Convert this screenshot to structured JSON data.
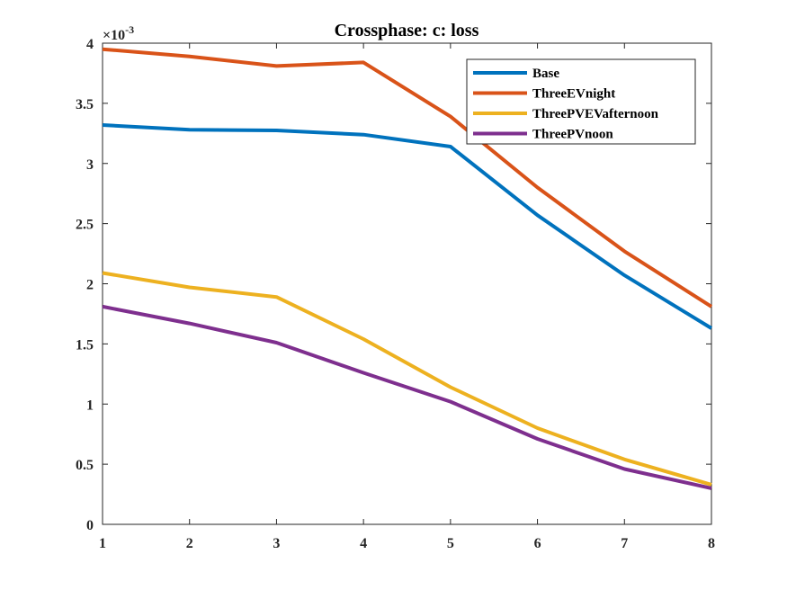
{
  "chart_data": {
    "type": "line",
    "title": "Crossphase: c: loss",
    "xlabel": "",
    "ylabel": "",
    "x": [
      1,
      2,
      3,
      4,
      5,
      6,
      7,
      8
    ],
    "xlim": [
      1,
      8
    ],
    "ylim": [
      0,
      0.004
    ],
    "x_ticks": [
      "1",
      "2",
      "3",
      "4",
      "5",
      "6",
      "7",
      "8"
    ],
    "y_ticks": [
      "0",
      "0.5",
      "1",
      "1.5",
      "2",
      "2.5",
      "3",
      "3.5",
      "4"
    ],
    "y_exponent_label": "×10",
    "y_exponent_power": "-3",
    "grid": false,
    "legend_position": "top-right",
    "series": [
      {
        "name": "Base",
        "color": "#0072BD",
        "values": [
          0.00332,
          0.00328,
          0.003275,
          0.00324,
          0.00314,
          0.00257,
          0.00207,
          0.00163
        ]
      },
      {
        "name": "ThreeEVnight",
        "color": "#D95319",
        "values": [
          0.00395,
          0.00389,
          0.00381,
          0.00384,
          0.00339,
          0.0028,
          0.00227,
          0.00181
        ]
      },
      {
        "name": "ThreePVEVafternoon",
        "color": "#EDB120",
        "values": [
          0.00209,
          0.00197,
          0.00189,
          0.00154,
          0.00114,
          0.0008,
          0.00054,
          0.00033
        ]
      },
      {
        "name": "ThreePVnoon",
        "color": "#7E2F8E",
        "values": [
          0.00181,
          0.00167,
          0.00151,
          0.00126,
          0.00102,
          0.00071,
          0.00046,
          0.0003
        ]
      }
    ]
  }
}
